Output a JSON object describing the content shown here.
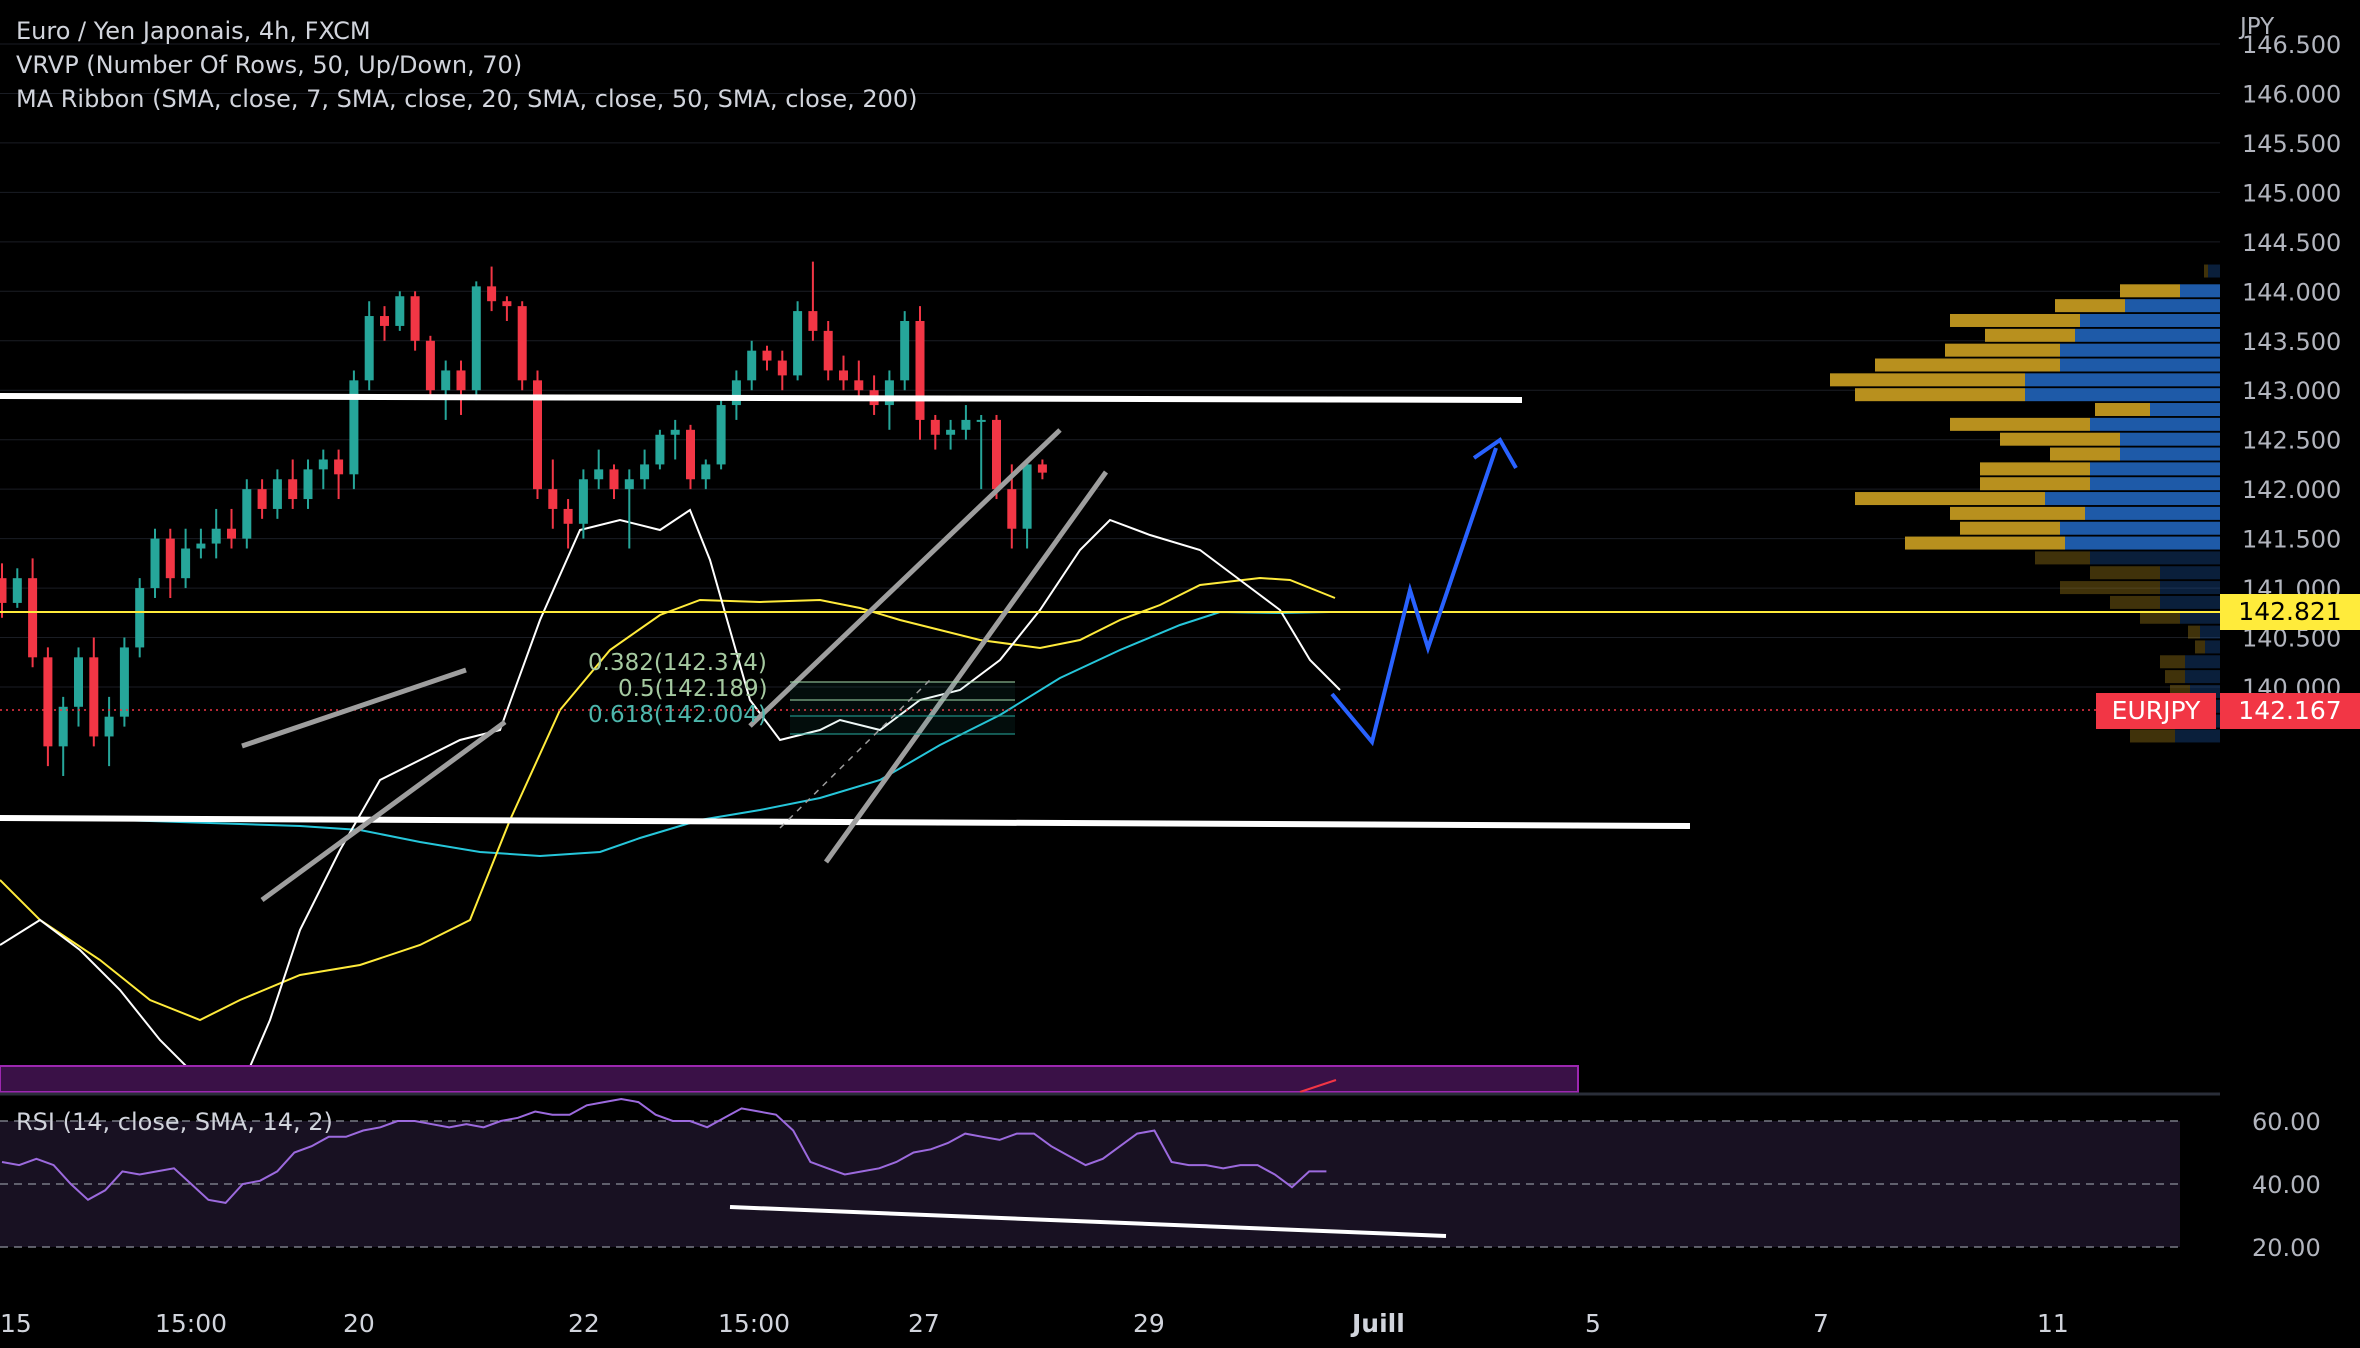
{
  "legend": {
    "symbol": "Euro / Yen Japonais, 4h, FXCM",
    "vrvp": "VRVP (Number Of Rows, 50, Up/Down, 70)",
    "ma_ribbon": "MA Ribbon (SMA, close, 7, SMA, close, 20, SMA, close, 50, SMA, close, 200)",
    "rsi": "RSI (14, close, SMA, 14, 2)"
  },
  "price_axis": {
    "currency": "JPY",
    "labels": [
      "146.500",
      "146.000",
      "145.500",
      "145.000",
      "144.500",
      "144.000",
      "143.500",
      "143.000",
      "142.500",
      "142.000",
      "141.500",
      "141.000",
      "140.500",
      "140.000"
    ]
  },
  "rsi_axis": {
    "labels": [
      "60.00",
      "40.00",
      "20.00"
    ]
  },
  "time_axis": {
    "labels": [
      "15",
      "15:00",
      "20",
      "22",
      "15:00",
      "27",
      "29",
      "Juill",
      "5",
      "7",
      "11"
    ]
  },
  "tags": {
    "hline_price": "142.821",
    "symbol_name": "EURJPY",
    "last_price": "142.167"
  },
  "fib": {
    "l1": "0.382(142.374)",
    "l2": "0.5(142.189)",
    "l3": "0.618(142.004)"
  },
  "colors": {
    "up": "#26a69a",
    "down": "#f23645",
    "ma7": "#ffffff",
    "ma20": "#ffeb3b",
    "ma50": "#26c6da",
    "hline": "#ffeb3b",
    "projection": "#2962ff",
    "rsi": "#9c6ade",
    "vp_up": "#1e5aa8",
    "vp_down": "#b8901e"
  },
  "chart_data": {
    "type": "candlestick",
    "y_range": [
      139.6,
      146.8
    ],
    "candles": [
      {
        "o": 141.1,
        "h": 141.25,
        "l": 140.7,
        "c": 140.85
      },
      {
        "o": 140.85,
        "h": 141.2,
        "l": 140.8,
        "c": 141.1
      },
      {
        "o": 141.1,
        "h": 141.3,
        "l": 140.2,
        "c": 140.3
      },
      {
        "o": 140.3,
        "h": 140.4,
        "l": 139.2,
        "c": 139.4
      },
      {
        "o": 139.4,
        "h": 139.9,
        "l": 139.1,
        "c": 139.8
      },
      {
        "o": 139.8,
        "h": 140.4,
        "l": 139.6,
        "c": 140.3
      },
      {
        "o": 140.3,
        "h": 140.5,
        "l": 139.4,
        "c": 139.5
      },
      {
        "o": 139.5,
        "h": 139.9,
        "l": 139.2,
        "c": 139.7
      },
      {
        "o": 139.7,
        "h": 140.5,
        "l": 139.6,
        "c": 140.4
      },
      {
        "o": 140.4,
        "h": 141.1,
        "l": 140.3,
        "c": 141.0
      },
      {
        "o": 141.0,
        "h": 141.6,
        "l": 140.9,
        "c": 141.5
      },
      {
        "o": 141.5,
        "h": 141.6,
        "l": 140.9,
        "c": 141.1
      },
      {
        "o": 141.1,
        "h": 141.6,
        "l": 141.0,
        "c": 141.4
      },
      {
        "o": 141.4,
        "h": 141.6,
        "l": 141.3,
        "c": 141.45
      },
      {
        "o": 141.45,
        "h": 141.8,
        "l": 141.3,
        "c": 141.6
      },
      {
        "o": 141.6,
        "h": 141.8,
        "l": 141.4,
        "c": 141.5
      },
      {
        "o": 141.5,
        "h": 142.1,
        "l": 141.4,
        "c": 142.0
      },
      {
        "o": 142.0,
        "h": 142.1,
        "l": 141.7,
        "c": 141.8
      },
      {
        "o": 141.8,
        "h": 142.2,
        "l": 141.7,
        "c": 142.1
      },
      {
        "o": 142.1,
        "h": 142.3,
        "l": 141.8,
        "c": 141.9
      },
      {
        "o": 141.9,
        "h": 142.3,
        "l": 141.8,
        "c": 142.2
      },
      {
        "o": 142.2,
        "h": 142.4,
        "l": 142.0,
        "c": 142.3
      },
      {
        "o": 142.3,
        "h": 142.4,
        "l": 141.9,
        "c": 142.15
      },
      {
        "o": 142.15,
        "h": 143.2,
        "l": 142.0,
        "c": 143.1
      },
      {
        "o": 143.1,
        "h": 143.9,
        "l": 143.0,
        "c": 143.75
      },
      {
        "o": 143.75,
        "h": 143.85,
        "l": 143.5,
        "c": 143.65
      },
      {
        "o": 143.65,
        "h": 144.0,
        "l": 143.6,
        "c": 143.95
      },
      {
        "o": 143.95,
        "h": 144.0,
        "l": 143.4,
        "c": 143.5
      },
      {
        "o": 143.5,
        "h": 143.55,
        "l": 142.95,
        "c": 143.0
      },
      {
        "o": 143.0,
        "h": 143.3,
        "l": 142.7,
        "c": 143.2
      },
      {
        "o": 143.2,
        "h": 143.3,
        "l": 142.75,
        "c": 143.0
      },
      {
        "o": 143.0,
        "h": 144.1,
        "l": 142.9,
        "c": 144.05
      },
      {
        "o": 144.05,
        "h": 144.25,
        "l": 143.8,
        "c": 143.9
      },
      {
        "o": 143.9,
        "h": 143.95,
        "l": 143.7,
        "c": 143.85
      },
      {
        "o": 143.85,
        "h": 143.9,
        "l": 143.0,
        "c": 143.1
      },
      {
        "o": 143.1,
        "h": 143.2,
        "l": 141.9,
        "c": 142.0
      },
      {
        "o": 142.0,
        "h": 142.3,
        "l": 141.6,
        "c": 141.8
      },
      {
        "o": 141.8,
        "h": 141.9,
        "l": 141.4,
        "c": 141.65
      },
      {
        "o": 141.65,
        "h": 142.2,
        "l": 141.5,
        "c": 142.1
      },
      {
        "o": 142.1,
        "h": 142.4,
        "l": 142.0,
        "c": 142.2
      },
      {
        "o": 142.2,
        "h": 142.25,
        "l": 141.9,
        "c": 142.0
      },
      {
        "o": 142.0,
        "h": 142.2,
        "l": 141.4,
        "c": 142.1
      },
      {
        "o": 142.1,
        "h": 142.4,
        "l": 142.0,
        "c": 142.25
      },
      {
        "o": 142.25,
        "h": 142.6,
        "l": 142.2,
        "c": 142.55
      },
      {
        "o": 142.55,
        "h": 142.7,
        "l": 142.3,
        "c": 142.6
      },
      {
        "o": 142.6,
        "h": 142.65,
        "l": 142.0,
        "c": 142.1
      },
      {
        "o": 142.1,
        "h": 142.3,
        "l": 142.0,
        "c": 142.25
      },
      {
        "o": 142.25,
        "h": 142.9,
        "l": 142.2,
        "c": 142.85
      },
      {
        "o": 142.85,
        "h": 143.2,
        "l": 142.7,
        "c": 143.1
      },
      {
        "o": 143.1,
        "h": 143.5,
        "l": 143.0,
        "c": 143.4
      },
      {
        "o": 143.4,
        "h": 143.45,
        "l": 143.2,
        "c": 143.3
      },
      {
        "o": 143.3,
        "h": 143.4,
        "l": 143.0,
        "c": 143.15
      },
      {
        "o": 143.15,
        "h": 143.9,
        "l": 143.1,
        "c": 143.8
      },
      {
        "o": 143.8,
        "h": 144.3,
        "l": 143.5,
        "c": 143.6
      },
      {
        "o": 143.6,
        "h": 143.7,
        "l": 143.1,
        "c": 143.2
      },
      {
        "o": 143.2,
        "h": 143.35,
        "l": 143.0,
        "c": 143.1
      },
      {
        "o": 143.1,
        "h": 143.3,
        "l": 142.9,
        "c": 143.0
      },
      {
        "o": 143.0,
        "h": 143.15,
        "l": 142.75,
        "c": 142.85
      },
      {
        "o": 142.85,
        "h": 143.2,
        "l": 142.6,
        "c": 143.1
      },
      {
        "o": 143.1,
        "h": 143.8,
        "l": 143.0,
        "c": 143.7
      },
      {
        "o": 143.7,
        "h": 143.85,
        "l": 142.5,
        "c": 142.7
      },
      {
        "o": 142.7,
        "h": 142.75,
        "l": 142.4,
        "c": 142.55
      },
      {
        "o": 142.55,
        "h": 142.7,
        "l": 142.4,
        "c": 142.6
      },
      {
        "o": 142.6,
        "h": 142.85,
        "l": 142.5,
        "c": 142.7
      },
      {
        "o": 142.7,
        "h": 142.75,
        "l": 142.0,
        "c": 142.7
      },
      {
        "o": 142.7,
        "h": 142.75,
        "l": 141.9,
        "c": 142.0
      },
      {
        "o": 142.0,
        "h": 142.25,
        "l": 141.4,
        "c": 141.6
      },
      {
        "o": 141.6,
        "h": 142.3,
        "l": 141.4,
        "c": 142.25
      },
      {
        "o": 142.25,
        "h": 142.3,
        "l": 142.1,
        "c": 142.167
      }
    ],
    "volume_profile": [
      {
        "price": 144.2,
        "up": 12,
        "down": 4
      },
      {
        "price": 144.0,
        "up": 40,
        "down": 60
      },
      {
        "price": 143.85,
        "up": 95,
        "down": 70
      },
      {
        "price": 143.7,
        "up": 140,
        "down": 130
      },
      {
        "price": 143.55,
        "up": 145,
        "down": 90
      },
      {
        "price": 143.4,
        "up": 160,
        "down": 115
      },
      {
        "price": 143.25,
        "up": 160,
        "down": 185
      },
      {
        "price": 143.1,
        "up": 195,
        "down": 195
      },
      {
        "price": 142.95,
        "up": 195,
        "down": 170
      },
      {
        "price": 142.8,
        "up": 70,
        "down": 55
      },
      {
        "price": 142.65,
        "up": 130,
        "down": 140
      },
      {
        "price": 142.5,
        "up": 100,
        "down": 120
      },
      {
        "price": 142.35,
        "up": 100,
        "down": 70
      },
      {
        "price": 142.2,
        "up": 130,
        "down": 110
      },
      {
        "price": 142.05,
        "up": 130,
        "down": 110
      },
      {
        "price": 141.9,
        "up": 175,
        "down": 190
      },
      {
        "price": 141.75,
        "up": 135,
        "down": 135
      },
      {
        "price": 141.6,
        "up": 160,
        "down": 100
      },
      {
        "price": 141.45,
        "up": 155,
        "down": 160
      },
      {
        "price": 141.3,
        "up": 130,
        "down": 55
      },
      {
        "price": 141.15,
        "up": 60,
        "down": 70
      },
      {
        "price": 141.0,
        "up": 60,
        "down": 100
      },
      {
        "price": 140.85,
        "up": 60,
        "down": 50
      },
      {
        "price": 140.7,
        "up": 40,
        "down": 40
      },
      {
        "price": 140.55,
        "up": 20,
        "down": 12
      },
      {
        "price": 140.4,
        "up": 15,
        "down": 10
      },
      {
        "price": 140.25,
        "up": 35,
        "down": 25
      },
      {
        "price": 140.1,
        "up": 35,
        "down": 20
      },
      {
        "price": 139.95,
        "up": 30,
        "down": 20
      },
      {
        "price": 139.8,
        "up": 40,
        "down": 15
      },
      {
        "price": 139.65,
        "up": 40,
        "down": 40
      },
      {
        "price": 139.5,
        "up": 45,
        "down": 45
      }
    ],
    "rsi": {
      "range": [
        15,
        75
      ],
      "values": [
        47,
        46,
        48,
        46,
        40,
        35,
        38,
        44,
        43,
        44,
        45,
        40,
        35,
        34,
        40,
        41,
        44,
        50,
        52,
        55,
        55,
        57,
        58,
        60,
        60,
        59,
        58,
        59,
        58,
        60,
        61,
        63,
        62,
        62,
        65,
        66,
        67,
        66,
        62,
        60,
        60,
        58,
        61,
        64,
        63,
        62,
        57,
        47,
        45,
        43,
        44,
        45,
        47,
        50,
        51,
        53,
        56,
        55,
        54,
        56,
        56,
        52,
        49,
        46,
        48,
        52,
        56,
        57,
        47,
        46,
        46,
        45,
        46,
        46,
        43,
        39,
        44,
        44
      ]
    },
    "horizontal_line": 142.821,
    "last_price": 142.167
  }
}
